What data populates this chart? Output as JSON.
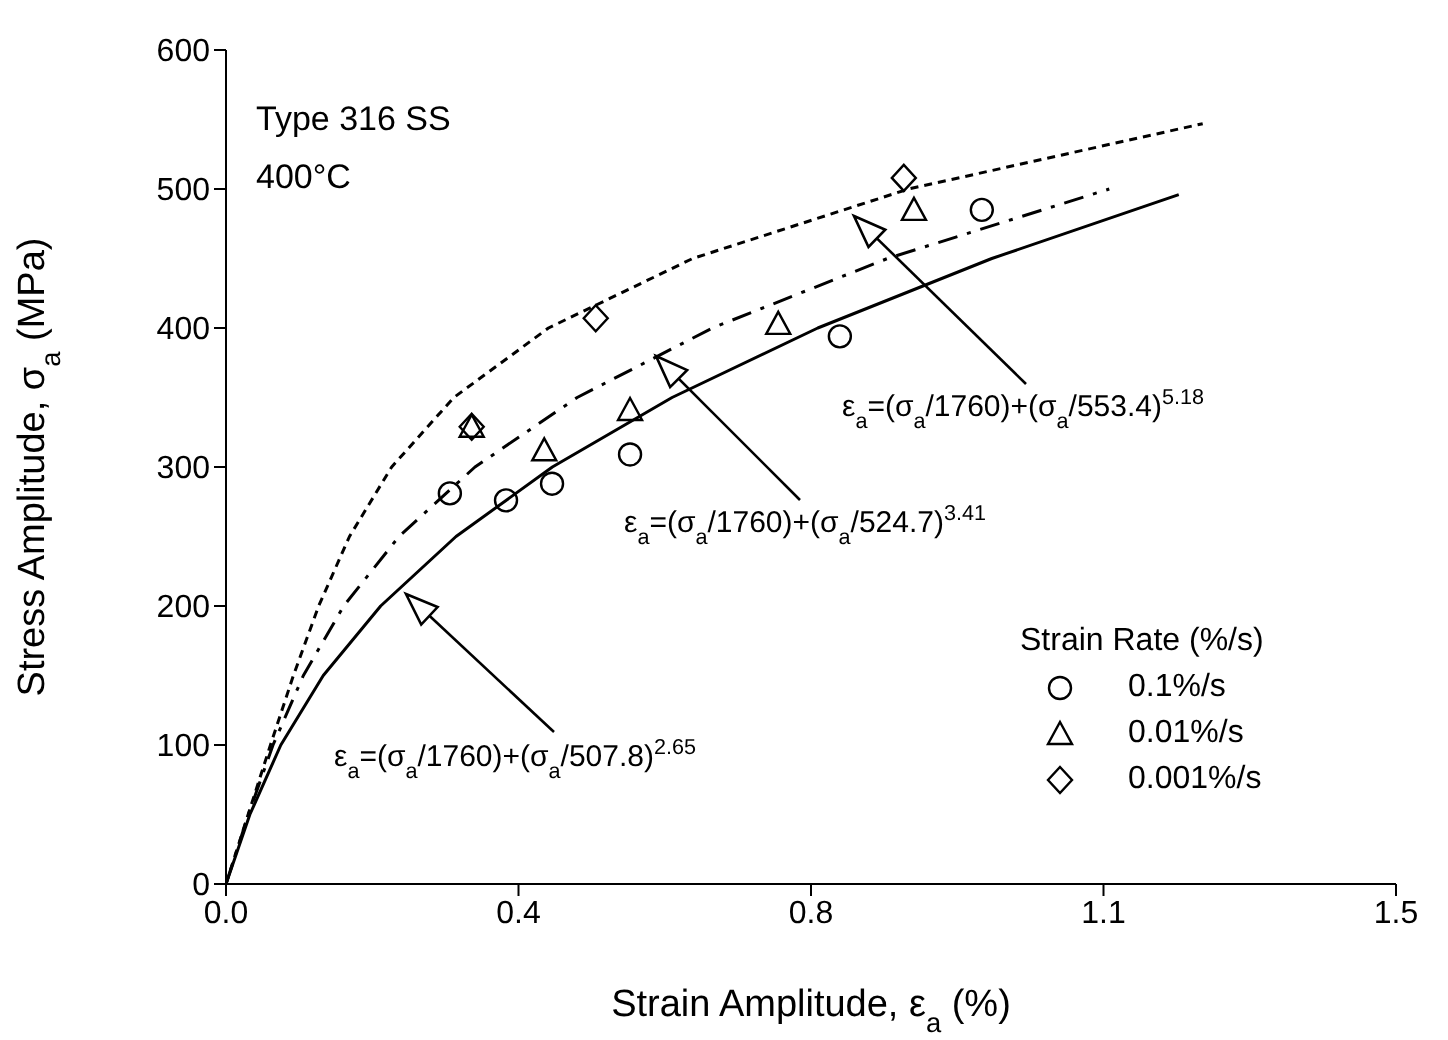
{
  "chart_data": {
    "type": "scatter",
    "xlabel": "Strain Amplitude, ε$_{a}$ (%)",
    "ylabel": "Stress Amplitude, σ$_{a}$ (MPa)",
    "legend_title": "Strain Rate (%/s)",
    "legend": "bottom right",
    "grid": false,
    "xlim": [
      0,
      1.5
    ],
    "xticks": [
      {
        "value": 0,
        "label": "0.0"
      },
      {
        "value": 0.375,
        "label": "0.4"
      },
      {
        "value": 0.75,
        "label": "0.8"
      },
      {
        "value": 1.125,
        "label": "1.1"
      },
      {
        "value": 1.5,
        "label": "1.5"
      }
    ],
    "ylim": [
      0,
      600
    ],
    "yticks": [
      0,
      100,
      200,
      300,
      400,
      500,
      600
    ],
    "series": [
      {
        "name": "0.1%/s",
        "marker": "circle",
        "color": "#000000",
        "x": [
          0.287,
          0.359,
          0.418,
          0.518,
          0.787,
          0.969
        ],
        "values": [
          281,
          276,
          288,
          309,
          394,
          485
        ]
      },
      {
        "name": "0.01%/s",
        "marker": "triangle",
        "color": "#000000",
        "x": [
          0.408,
          0.518,
          0.708,
          0.882,
          0.315
        ],
        "values": [
          312,
          341,
          403,
          485,
          329
        ]
      },
      {
        "name": "0.001%/s",
        "marker": "diamond",
        "color": "#000000",
        "x": [
          0.474,
          0.869,
          0.315
        ],
        "values": [
          407,
          508,
          329
        ]
      },
      {
        "type": "line",
        "line_style": "solid",
        "marker": "none",
        "color": "#000000",
        "x": [
          0,
          0.0306,
          0.0703,
          0.1247,
          0.1983,
          0.2949,
          0.4184,
          0.5719,
          0.7587,
          0.9818,
          1.2215
        ],
        "values": [
          0,
          50,
          100,
          150,
          200,
          250,
          300,
          350,
          400,
          450,
          496
        ]
      },
      {
        "type": "line",
        "line_style": "dashed",
        "marker": "none",
        "color": "#000000",
        "x": [
          0,
          0.0287,
          0.0603,
          0.0992,
          0.1509,
          0.2218,
          0.3192,
          0.4502,
          0.6236,
          0.848,
          1.1324
        ],
        "values": [
          0,
          50,
          100,
          150,
          200,
          250,
          300,
          350,
          400,
          450,
          500
        ]
      },
      {
        "type": "line",
        "line_style": "dotted",
        "marker": "none",
        "color": "#000000",
        "x": [
          0,
          0.0284,
          0.057,
          0.0864,
          0.1188,
          0.1583,
          0.2124,
          0.2921,
          0.4134,
          0.5983,
          0.8752,
          1.2522
        ],
        "values": [
          0,
          50,
          100,
          150,
          200,
          250,
          300,
          350,
          400,
          450,
          500,
          547
        ]
      }
    ],
    "annotations": [
      "Type 316 SS",
      "400°C",
      "ε$_{a}$=(σ$_{a}$/1760)+(σ$_{a}$/507.8)$^{2.65}$",
      "ε$_{a}$=(σ$_{a}$/1760)+(σ$_{a}$/524.7)$^{3.41}$",
      "ε$_{a}$=(σ$_{a}$/1760)+(σ$_{a}$/553.4)$^{5.18}$"
    ]
  }
}
